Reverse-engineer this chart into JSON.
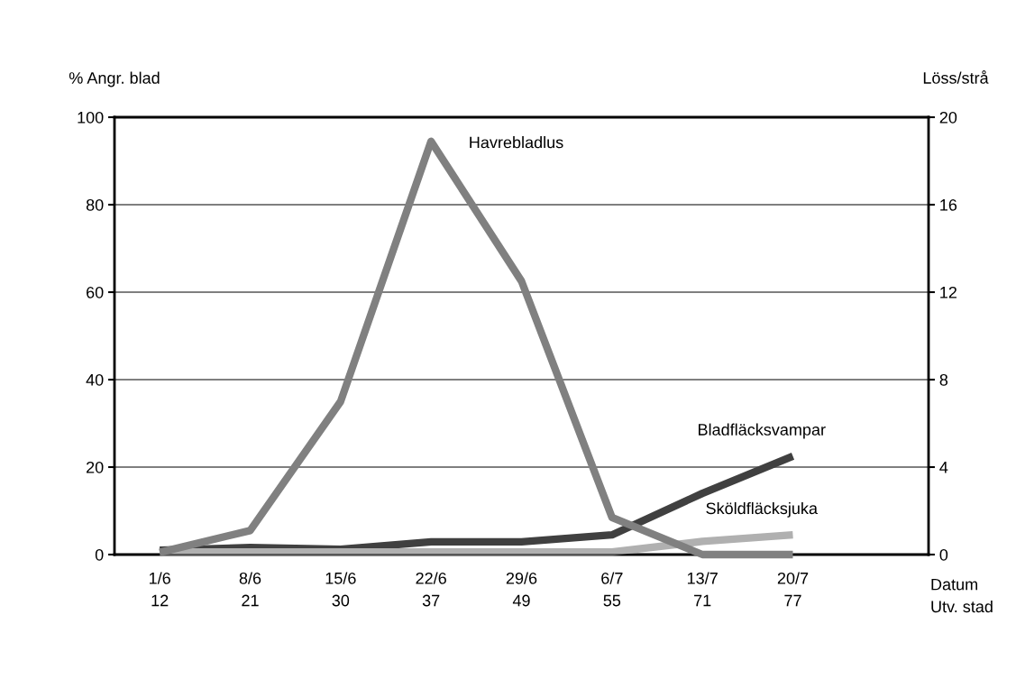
{
  "chart_data": {
    "type": "line",
    "ylabel": "% Angr. blad",
    "y2label": "Löss/strå",
    "categories": [
      "1/6\n12",
      "8/6\n21",
      "15/6\n30",
      "22/6\n37",
      "29/6\n49",
      "6/7\n55",
      "13/7\n71",
      "20/7\n77",
      null
    ],
    "series": [
      {
        "name": "Havrebladlus",
        "color": "#808080",
        "axis": "y2",
        "values": [
          0.1,
          1.1,
          7.0,
          18.9,
          12.5,
          1.7,
          0,
          0,
          null
        ]
      },
      {
        "name": "Bladfläcksvampar",
        "color": "#404040",
        "values": [
          1,
          1.6,
          1.2,
          2.9,
          2.9,
          4.5,
          14,
          22.5,
          null
        ]
      },
      {
        "name": "Sköldfläcksjuka",
        "color": "#b0b0b0",
        "values": [
          0.6,
          0.6,
          0.6,
          0.6,
          0.6,
          0.6,
          3,
          4.5,
          null
        ]
      }
    ],
    "ylim": [
      0,
      100
    ],
    "yticks": [
      0,
      20,
      40,
      60,
      80,
      100
    ],
    "y2lim": [
      0,
      20
    ],
    "y2ticks": [
      0,
      4,
      8,
      12,
      16,
      20
    ],
    "grid": "y",
    "legend": false,
    "marker": "none",
    "line_style": "solid",
    "annotations": [
      "Datum\nUtv. stad"
    ]
  }
}
